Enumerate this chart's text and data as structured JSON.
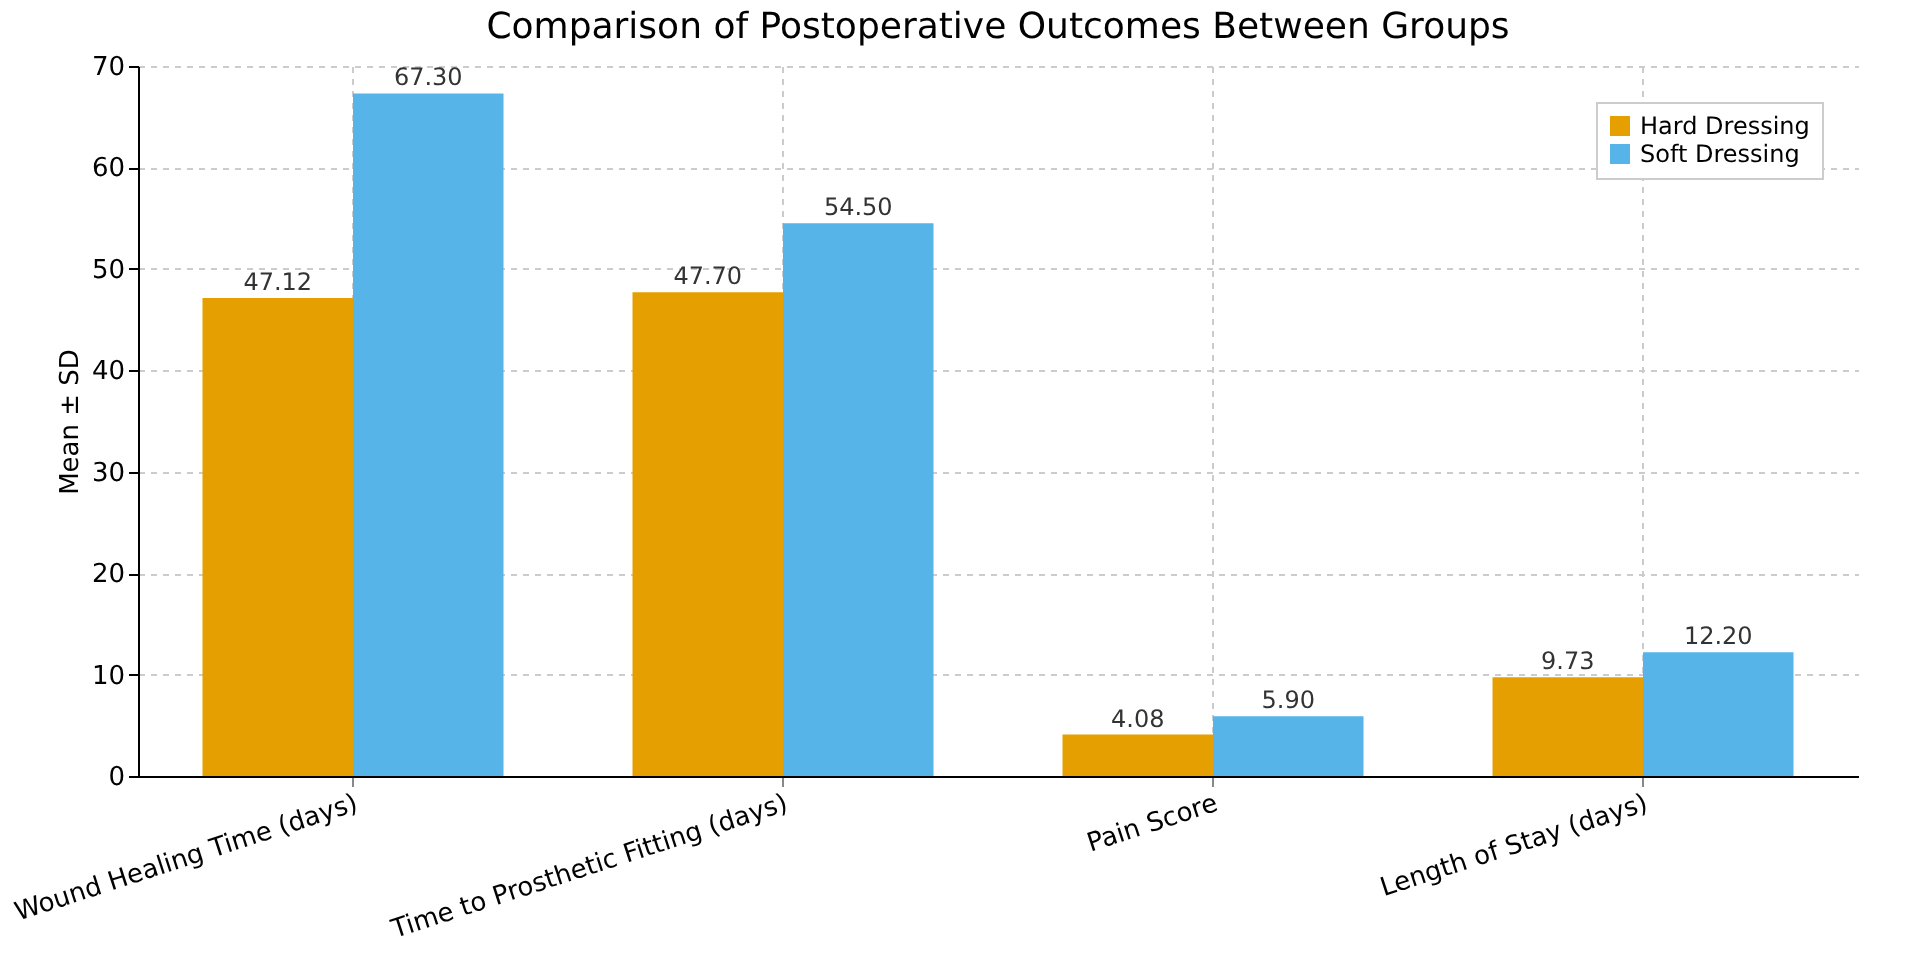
{
  "chart_data": {
    "type": "bar",
    "title": "Comparison of Postoperative Outcomes Between Groups",
    "ylabel": "Mean ± SD",
    "categories": [
      "Wound Healing Time (days)",
      "Time to Prosthetic Fitting (days)",
      "Pain Score",
      "Length of Stay (days)"
    ],
    "series": [
      {
        "name": "Hard Dressing",
        "color": "#e69f00",
        "values": [
          47.12,
          47.7,
          4.08,
          9.73
        ],
        "value_labels": [
          "47.12",
          "47.70",
          "4.08",
          "9.73"
        ]
      },
      {
        "name": "Soft Dressing",
        "color": "#56b4e9",
        "values": [
          67.3,
          54.5,
          5.9,
          12.2
        ],
        "value_labels": [
          "67.30",
          "54.50",
          "5.90",
          "12.20"
        ]
      }
    ],
    "ylim": [
      0,
      70
    ],
    "yticks": [
      0,
      10,
      20,
      30,
      40,
      50,
      60,
      70
    ],
    "grid": true,
    "legend": "top right"
  }
}
